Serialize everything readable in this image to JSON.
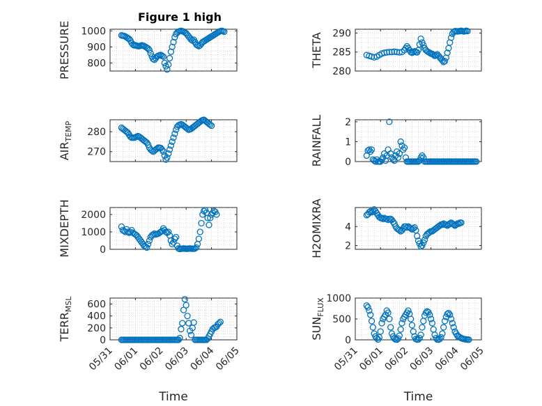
{
  "title": "Figure 1 high",
  "colors": {
    "series": "#0072bd"
  },
  "x_tick_labels": [
    "05/31",
    "06/01",
    "06/02",
    "06/03",
    "06/04",
    "06/05"
  ],
  "chart_data": [
    {
      "type": "scatter",
      "ylabel": "PRESSURE",
      "xlabel": "",
      "ylim": [
        750,
        1010
      ],
      "yticks": [
        800,
        900,
        1000
      ],
      "grid": true,
      "x": [
        0.45,
        0.5,
        0.55,
        0.6,
        0.65,
        0.7,
        0.75,
        0.8,
        0.85,
        0.9,
        0.95,
        1.0,
        1.05,
        1.1,
        1.15,
        1.2,
        1.25,
        1.3,
        1.35,
        1.4,
        1.45,
        1.5,
        1.55,
        1.6,
        1.65,
        1.7,
        1.75,
        1.8,
        1.85,
        1.9,
        1.95,
        2.0,
        2.05,
        2.1,
        2.15,
        2.2,
        2.25,
        2.3,
        2.35,
        2.4,
        2.45,
        2.5,
        2.55,
        2.6,
        2.65,
        2.7,
        2.75,
        2.8,
        2.85,
        2.9,
        2.95,
        3.0,
        3.05,
        3.1,
        3.15,
        3.2,
        3.25,
        3.3,
        3.35,
        3.4,
        3.45,
        3.5,
        3.55,
        3.6,
        3.65,
        3.7,
        3.75,
        3.8,
        3.85,
        3.9,
        3.95,
        4.0,
        4.05,
        4.1,
        4.15,
        4.2,
        4.25,
        4.3,
        4.35,
        4.4,
        4.45,
        4.5
      ],
      "y": [
        972,
        970,
        968,
        965,
        960,
        955,
        950,
        940,
        925,
        915,
        910,
        910,
        908,
        905,
        905,
        907,
        910,
        908,
        905,
        900,
        895,
        890,
        880,
        860,
        840,
        825,
        820,
        830,
        840,
        845,
        848,
        850,
        845,
        840,
        800,
        780,
        760,
        790,
        830,
        870,
        900,
        930,
        960,
        980,
        990,
        995,
        998,
        1000,
        998,
        995,
        990,
        985,
        975,
        965,
        955,
        945,
        940,
        945,
        930,
        915,
        910,
        905,
        910,
        920,
        930,
        935,
        940,
        945,
        950,
        955,
        960,
        965,
        970,
        975,
        980,
        985,
        990,
        995,
        998,
        1000,
        998,
        995
      ]
    },
    {
      "type": "scatter",
      "ylabel": "THETA",
      "xlabel": "",
      "ylim": [
        280,
        291
      ],
      "yticks": [
        280,
        285,
        290
      ],
      "grid": true,
      "x": [
        0.45,
        0.55,
        0.65,
        0.75,
        0.85,
        0.95,
        1.05,
        1.15,
        1.25,
        1.35,
        1.45,
        1.55,
        1.65,
        1.75,
        1.85,
        1.95,
        2.0,
        2.05,
        2.1,
        2.15,
        2.2,
        2.25,
        2.3,
        2.35,
        2.4,
        2.45,
        2.5,
        2.55,
        2.6,
        2.65,
        2.7,
        2.75,
        2.8,
        2.85,
        2.9,
        2.95,
        3.0,
        3.05,
        3.1,
        3.15,
        3.2,
        3.25,
        3.3,
        3.35,
        3.4,
        3.45,
        3.5,
        3.55,
        3.6,
        3.65,
        3.7,
        3.75,
        3.8,
        3.85,
        3.9,
        3.95,
        4.0,
        4.05,
        4.1,
        4.15,
        4.2,
        4.25,
        4.3,
        4.35,
        4.4,
        4.45
      ],
      "y": [
        284.2,
        284.0,
        283.8,
        283.6,
        283.8,
        284.2,
        284.6,
        284.8,
        284.9,
        285.0,
        285.0,
        285.1,
        285.0,
        284.9,
        285.0,
        285.5,
        286.0,
        286.5,
        286.0,
        285.5,
        285.0,
        284.8,
        285.0,
        285.2,
        285.0,
        284.9,
        285.5,
        287.0,
        288.5,
        287.5,
        286.8,
        286.0,
        285.5,
        285.2,
        285.0,
        284.8,
        284.6,
        284.5,
        284.3,
        284.0,
        284.2,
        284.4,
        284.0,
        283.6,
        283.2,
        282.8,
        282.4,
        282.6,
        283.5,
        284.8,
        286.0,
        287.5,
        288.8,
        289.8,
        290.3,
        290.5,
        290.5,
        290.4,
        290.5,
        290.5,
        290.6,
        290.5,
        290.4,
        290.5,
        290.6,
        290.5
      ]
    },
    {
      "type": "scatter",
      "ylabel": "AIR_TEMP",
      "xlabel": "",
      "ylim": [
        265,
        286
      ],
      "yticks": [
        270,
        280
      ],
      "grid": true,
      "x": [
        0.45,
        0.5,
        0.55,
        0.6,
        0.65,
        0.7,
        0.75,
        0.8,
        0.85,
        0.9,
        0.95,
        1.0,
        1.05,
        1.1,
        1.15,
        1.2,
        1.25,
        1.3,
        1.35,
        1.4,
        1.45,
        1.5,
        1.55,
        1.6,
        1.65,
        1.7,
        1.75,
        1.8,
        1.85,
        1.9,
        1.95,
        2.0,
        2.05,
        2.1,
        2.15,
        2.2,
        2.25,
        2.3,
        2.35,
        2.4,
        2.45,
        2.5,
        2.55,
        2.6,
        2.65,
        2.7,
        2.75,
        2.8,
        2.85,
        2.9,
        2.95,
        3.0,
        3.05,
        3.1,
        3.15,
        3.2,
        3.25,
        3.3,
        3.35,
        3.4,
        3.45,
        3.5,
        3.55,
        3.6,
        3.65,
        3.7,
        3.75,
        3.8,
        3.85,
        3.9,
        3.95,
        4.0
      ],
      "y": [
        282,
        281.5,
        281,
        280.5,
        280,
        279.5,
        278.5,
        277.5,
        277,
        277,
        277,
        277.2,
        277.5,
        277.8,
        277.5,
        277,
        276.5,
        276,
        275.5,
        275,
        274.5,
        273.5,
        272,
        271,
        270.5,
        270,
        270.5,
        271,
        271.5,
        272,
        272,
        271.8,
        271,
        270,
        268,
        266,
        267,
        269,
        271,
        273,
        275,
        277,
        279,
        281,
        282.5,
        283.2,
        283.5,
        283.8,
        283.5,
        283,
        282.5,
        282,
        281.5,
        281,
        281.2,
        281.5,
        282,
        282.5,
        283,
        283.5,
        284,
        284.5,
        285,
        285.5,
        285.8,
        286,
        285.5,
        285,
        284.5,
        284,
        283.5,
        283
      ]
    },
    {
      "type": "scatter",
      "ylabel": "RAINFALL",
      "xlabel": "",
      "ylim": [
        0,
        2.1
      ],
      "yticks": [
        0,
        1,
        2
      ],
      "grid": true,
      "x": [
        0.45,
        0.5,
        0.55,
        0.6,
        0.65,
        0.7,
        0.75,
        0.8,
        0.85,
        0.9,
        0.95,
        1.0,
        1.05,
        1.1,
        1.15,
        1.2,
        1.25,
        1.3,
        1.35,
        1.4,
        1.45,
        1.5,
        1.55,
        1.6,
        1.65,
        1.7,
        1.75,
        1.8,
        1.85,
        1.9,
        1.95,
        2.0,
        2.05,
        2.1,
        2.15,
        2.2,
        2.25,
        2.3,
        2.35,
        2.4,
        2.45,
        2.5,
        2.55,
        2.6,
        2.65,
        2.7,
        2.75,
        2.8,
        2.85,
        2.9,
        2.95,
        3.0,
        3.05,
        3.1,
        3.15,
        3.2,
        3.25,
        3.3,
        3.35,
        3.4,
        3.45,
        3.5,
        3.55,
        3.6,
        3.65,
        3.7,
        3.75,
        3.8,
        3.85,
        3.9,
        3.95,
        4.0,
        4.05,
        4.1,
        4.15,
        4.2,
        4.25,
        4.3,
        4.35,
        4.4,
        4.45,
        4.5,
        4.55,
        4.6,
        4.65,
        4.7,
        4.75,
        4.8
      ],
      "y": [
        0.3,
        0.55,
        0.6,
        0.5,
        0.6,
        0.1,
        0.05,
        0,
        0.1,
        0,
        0,
        0,
        0.1,
        0.2,
        0.4,
        0.05,
        0.3,
        0.6,
        2.0,
        0.4,
        0.2,
        0.1,
        0.05,
        0.3,
        0.5,
        0.2,
        0.4,
        1.0,
        0.8,
        0.6,
        0.7,
        0.2,
        0,
        0,
        0,
        0,
        0,
        0,
        0,
        0,
        0,
        0,
        0.05,
        0.2,
        0.3,
        0.2,
        0,
        0,
        0,
        0,
        0,
        0,
        0,
        0,
        0,
        0,
        0,
        0,
        0,
        0,
        0,
        0,
        0,
        0,
        0,
        0,
        0,
        0,
        0,
        0,
        0,
        0,
        0,
        0,
        0,
        0,
        0,
        0,
        0,
        0,
        0,
        0,
        0,
        0,
        0,
        0,
        0,
        0
      ]
    },
    {
      "type": "scatter",
      "ylabel": "MIXDEPTH",
      "xlabel": "",
      "ylim": [
        0,
        2400
      ],
      "yticks": [
        0,
        1000,
        2000
      ],
      "grid": true,
      "x": [
        0.45,
        0.5,
        0.55,
        0.6,
        0.65,
        0.7,
        0.75,
        0.8,
        0.85,
        0.9,
        0.95,
        1.0,
        1.05,
        1.1,
        1.15,
        1.2,
        1.25,
        1.3,
        1.35,
        1.4,
        1.45,
        1.5,
        1.55,
        1.6,
        1.65,
        1.7,
        1.75,
        1.8,
        1.85,
        1.9,
        1.95,
        2.0,
        2.05,
        2.1,
        2.15,
        2.2,
        2.25,
        2.3,
        2.35,
        2.4,
        2.45,
        2.5,
        2.55,
        2.6,
        2.65,
        2.7,
        2.75,
        2.8,
        2.85,
        2.9,
        2.95,
        3.0,
        3.05,
        3.1,
        3.15,
        3.2,
        3.25,
        3.3,
        3.35,
        3.4,
        3.45,
        3.5,
        3.55,
        3.6,
        3.65,
        3.7,
        3.75,
        3.8,
        3.85,
        3.9,
        3.95,
        4.0,
        4.05,
        4.1,
        4.15,
        4.2
      ],
      "y": [
        1300,
        1100,
        1050,
        1000,
        1150,
        1000,
        950,
        1000,
        1100,
        950,
        900,
        850,
        800,
        700,
        600,
        500,
        400,
        300,
        200,
        150,
        100,
        300,
        500,
        700,
        800,
        850,
        900,
        850,
        880,
        900,
        950,
        1000,
        1050,
        1200,
        1100,
        1000,
        950,
        1000,
        800,
        500,
        300,
        400,
        600,
        700,
        200,
        50,
        20,
        30,
        40,
        50,
        40,
        30,
        30,
        40,
        50,
        40,
        30,
        30,
        50,
        100,
        300,
        600,
        1000,
        1500,
        2000,
        2200,
        2250,
        2100,
        1800,
        1400,
        1800,
        2000,
        2100,
        2200,
        2150,
        2000
      ]
    },
    {
      "type": "scatter",
      "ylabel": "H2OMIXRA",
      "xlabel": "",
      "ylim": [
        1.6,
        6.0
      ],
      "yticks": [
        2,
        4
      ],
      "grid": true,
      "x": [
        0.45,
        0.5,
        0.55,
        0.6,
        0.65,
        0.7,
        0.75,
        0.8,
        0.85,
        0.9,
        0.95,
        1.0,
        1.05,
        1.1,
        1.15,
        1.2,
        1.25,
        1.3,
        1.35,
        1.4,
        1.45,
        1.5,
        1.55,
        1.6,
        1.65,
        1.7,
        1.75,
        1.8,
        1.85,
        1.9,
        1.95,
        2.0,
        2.05,
        2.1,
        2.15,
        2.2,
        2.25,
        2.3,
        2.35,
        2.4,
        2.45,
        2.5,
        2.55,
        2.6,
        2.65,
        2.7,
        2.75,
        2.8,
        2.85,
        2.9,
        2.95,
        3.0,
        3.05,
        3.1,
        3.15,
        3.2,
        3.25,
        3.3,
        3.35,
        3.4,
        3.45,
        3.5,
        3.55,
        3.6,
        3.65,
        3.7,
        3.75,
        3.8,
        3.85,
        3.9,
        3.95,
        4.0,
        4.05,
        4.1,
        4.15,
        4.2
      ],
      "y": [
        5.2,
        5.3,
        5.5,
        5.6,
        5.5,
        5.6,
        5.8,
        5.6,
        5.4,
        5.2,
        5.0,
        4.9,
        4.9,
        4.8,
        4.9,
        4.8,
        4.8,
        4.7,
        4.8,
        4.8,
        4.7,
        4.5,
        4.3,
        4.0,
        3.8,
        3.7,
        3.6,
        3.5,
        3.6,
        3.8,
        4.0,
        4.0,
        3.9,
        4.0,
        3.9,
        3.8,
        3.7,
        3.8,
        3.9,
        3.6,
        3.0,
        2.5,
        2.2,
        1.9,
        2.0,
        2.3,
        2.6,
        3.0,
        3.2,
        3.3,
        3.4,
        3.5,
        3.5,
        3.6,
        3.7,
        3.8,
        3.9,
        4.0,
        4.1,
        4.2,
        4.2,
        4.3,
        4.2,
        4.2,
        4.1,
        4.2,
        4.3,
        4.4,
        4.3,
        4.2,
        4.1,
        4.2,
        4.3,
        4.3,
        4.4,
        4.4
      ]
    },
    {
      "type": "scatter",
      "ylabel": "TERR_MSL",
      "xlabel": "Time",
      "ylim": [
        0,
        700
      ],
      "yticks": [
        0,
        200,
        400,
        600
      ],
      "grid": true,
      "x": [
        0.45,
        0.5,
        0.55,
        0.6,
        0.65,
        0.7,
        0.75,
        0.8,
        0.85,
        0.9,
        0.95,
        1.0,
        1.05,
        1.1,
        1.15,
        1.2,
        1.25,
        1.3,
        1.35,
        1.4,
        1.45,
        1.5,
        1.55,
        1.6,
        1.65,
        1.7,
        1.75,
        1.8,
        1.85,
        1.9,
        1.95,
        2.0,
        2.05,
        2.1,
        2.15,
        2.2,
        2.25,
        2.3,
        2.35,
        2.4,
        2.45,
        2.5,
        2.55,
        2.6,
        2.65,
        2.7,
        2.75,
        2.8,
        2.85,
        2.9,
        2.95,
        3.0,
        3.05,
        3.1,
        3.15,
        3.2,
        3.25,
        3.3,
        3.35,
        3.4,
        3.45,
        3.5,
        3.55,
        3.6,
        3.65,
        3.7,
        3.75,
        3.8,
        3.85,
        3.9,
        3.95,
        4.0,
        4.05,
        4.1,
        4.15,
        4.2,
        4.25,
        4.3,
        4.35
      ],
      "y": [
        0,
        0,
        0,
        0,
        0,
        0,
        0,
        0,
        0,
        0,
        0,
        0,
        0,
        0,
        0,
        0,
        0,
        0,
        0,
        0,
        0,
        0,
        0,
        0,
        0,
        0,
        0,
        0,
        0,
        0,
        0,
        0,
        0,
        0,
        0,
        0,
        0,
        0,
        0,
        0,
        0,
        0,
        0,
        0,
        0,
        0,
        30,
        180,
        280,
        500,
        680,
        580,
        400,
        280,
        150,
        80,
        200,
        290,
        0,
        0,
        0,
        0,
        0,
        0,
        0,
        0,
        0,
        0,
        20,
        60,
        100,
        140,
        180,
        200,
        210,
        220,
        260,
        280,
        300
      ]
    },
    {
      "type": "scatter",
      "ylabel": "SUN_FLUX",
      "xlabel": "Time",
      "ylim": [
        0,
        1000
      ],
      "yticks": [
        0,
        500,
        1000
      ],
      "grid": true,
      "x": [
        0.45,
        0.5,
        0.55,
        0.6,
        0.65,
        0.7,
        0.75,
        0.8,
        0.85,
        0.9,
        0.95,
        1.0,
        1.05,
        1.1,
        1.15,
        1.2,
        1.25,
        1.3,
        1.35,
        1.4,
        1.45,
        1.5,
        1.55,
        1.6,
        1.65,
        1.7,
        1.75,
        1.8,
        1.85,
        1.9,
        1.95,
        2.0,
        2.05,
        2.1,
        2.15,
        2.2,
        2.25,
        2.3,
        2.35,
        2.4,
        2.45,
        2.5,
        2.55,
        2.6,
        2.65,
        2.7,
        2.75,
        2.8,
        2.85,
        2.9,
        2.95,
        3.0,
        3.05,
        3.1,
        3.15,
        3.2,
        3.25,
        3.3,
        3.35,
        3.4,
        3.45,
        3.5,
        3.55,
        3.6,
        3.65,
        3.7,
        3.75,
        3.8,
        3.85,
        3.9,
        3.95,
        4.0,
        4.05,
        4.1,
        4.15,
        4.2,
        4.25,
        4.3,
        4.35,
        4.4,
        4.45,
        4.5
      ],
      "y": [
        820,
        780,
        700,
        600,
        450,
        300,
        150,
        80,
        40,
        10,
        60,
        200,
        400,
        500,
        550,
        600,
        700,
        650,
        500,
        300,
        150,
        80,
        30,
        10,
        5,
        30,
        100,
        250,
        400,
        500,
        550,
        600,
        650,
        700,
        620,
        500,
        350,
        200,
        80,
        20,
        5,
        10,
        40,
        120,
        300,
        450,
        580,
        650,
        680,
        660,
        600,
        500,
        400,
        250,
        120,
        40,
        10,
        5,
        20,
        60,
        150,
        300,
        450,
        550,
        620,
        640,
        600,
        500,
        400,
        300,
        200,
        150,
        100,
        80,
        60,
        40,
        30,
        20,
        15,
        10,
        5,
        3
      ]
    }
  ]
}
